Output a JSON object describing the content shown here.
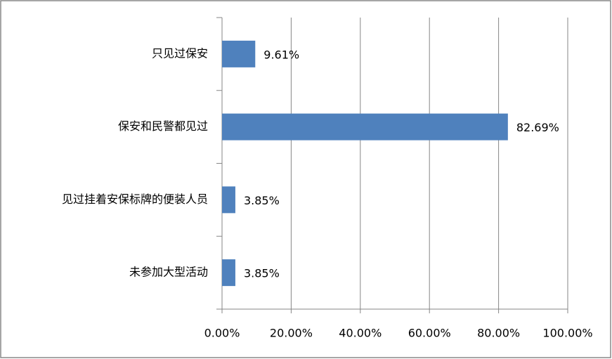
{
  "chart_data": {
    "type": "bar",
    "orientation": "horizontal",
    "categories": [
      "只见过保安",
      "保安和民警都见过",
      "见过挂着安保标牌的便装人员",
      "未参加大型活动"
    ],
    "values": [
      9.61,
      82.69,
      3.85,
      3.85
    ],
    "value_labels": [
      "9.61%",
      "82.69%",
      "3.85%",
      "3.85%"
    ],
    "color": "#4f81bd",
    "xlim": [
      0,
      100
    ],
    "xticks": [
      {
        "value": 0,
        "label": "0.00%"
      },
      {
        "value": 20,
        "label": "20.00%"
      },
      {
        "value": 40,
        "label": "40.00%"
      },
      {
        "value": 60,
        "label": "60.00%"
      },
      {
        "value": 80,
        "label": "80.00%"
      },
      {
        "value": 100,
        "label": "100.00%"
      }
    ],
    "grid": true
  }
}
